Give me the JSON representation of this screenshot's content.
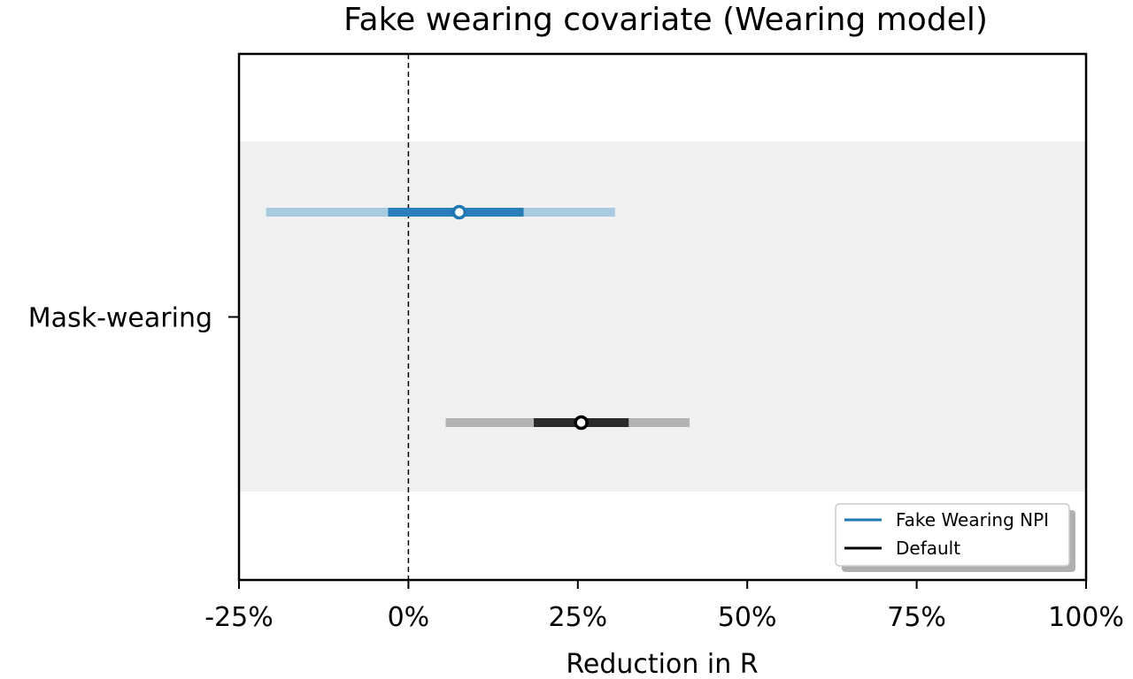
{
  "chart_data": {
    "type": "forest",
    "title": "Fake wearing covariate (Wearing model)",
    "xlabel": "Reduction in R",
    "ylabel": "",
    "xlim": [
      -25,
      100
    ],
    "x_unit": "%",
    "xticks": [
      -25,
      0,
      25,
      50,
      75,
      100
    ],
    "xtick_labels": [
      "-25%",
      "0%",
      "25%",
      "50%",
      "75%",
      "100%"
    ],
    "reference_line": 0,
    "categories": [
      "Mask-wearing"
    ],
    "series": [
      {
        "name": "Fake Wearing NPI",
        "color": "#1f77b4",
        "light_color": "#a9cbe2",
        "median": 7.5,
        "inner": [
          -3,
          17
        ],
        "outer": [
          -21,
          30.5
        ]
      },
      {
        "name": "Default",
        "color": "#000000",
        "light_color": "#b3b3b3",
        "median": 25.5,
        "inner": [
          18.5,
          32.5
        ],
        "outer": [
          5.5,
          41.5
        ]
      }
    ],
    "legend": {
      "position": "lower-right",
      "entries": [
        "Fake Wearing NPI",
        "Default"
      ]
    },
    "grid": false,
    "shaded_band": true
  }
}
